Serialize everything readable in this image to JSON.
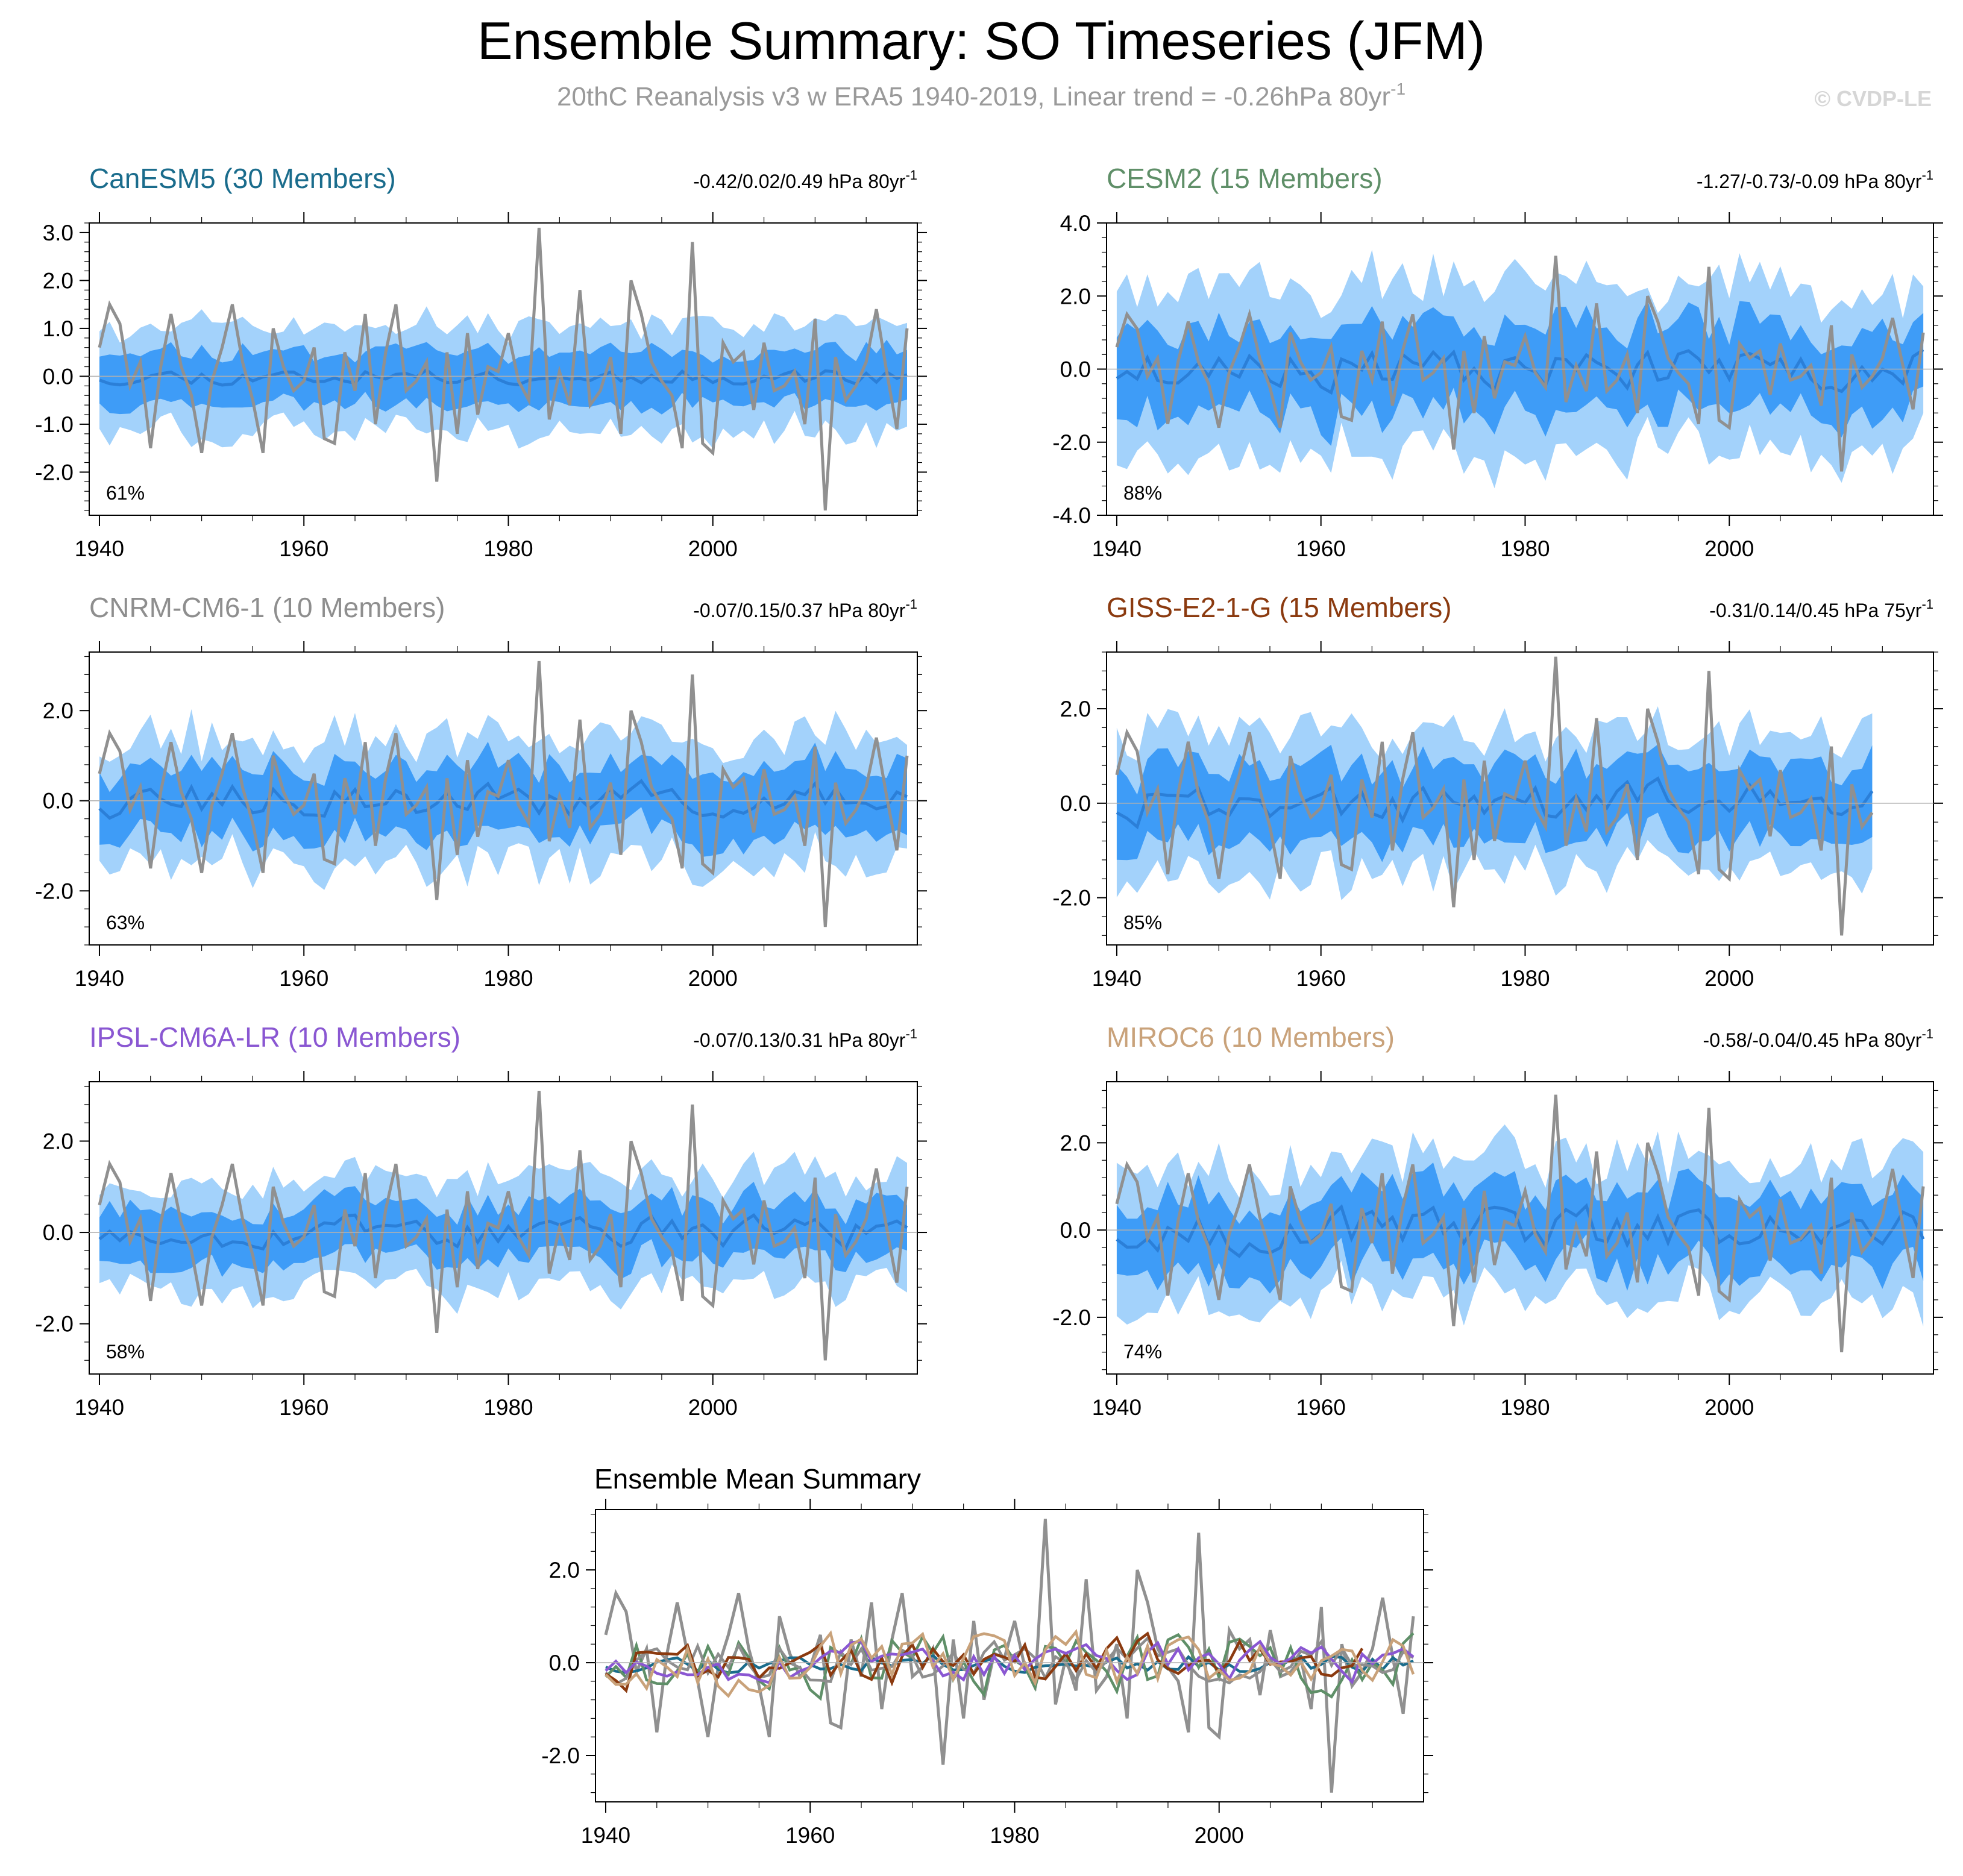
{
  "title": "Ensemble Summary: SO Timeseries (JFM)",
  "subtitle": "20thC Reanalysis v3 w ERA5 1940-2019, Linear trend = -0.26hPa 80yr",
  "subtitle_sup": "-1",
  "copyright": "© CVDP-LE",
  "chart_data": {
    "type": "line",
    "observed": {
      "name": "20thC Reanalysis v3 w ERA5",
      "color": "#909090",
      "x": [
        1940,
        1941,
        1942,
        1943,
        1944,
        1945,
        1946,
        1947,
        1948,
        1949,
        1950,
        1951,
        1952,
        1953,
        1954,
        1955,
        1956,
        1957,
        1958,
        1959,
        1960,
        1961,
        1962,
        1963,
        1964,
        1965,
        1966,
        1967,
        1968,
        1969,
        1970,
        1971,
        1972,
        1973,
        1974,
        1975,
        1976,
        1977,
        1978,
        1979,
        1980,
        1981,
        1982,
        1983,
        1984,
        1985,
        1986,
        1987,
        1988,
        1989,
        1990,
        1991,
        1992,
        1993,
        1994,
        1995,
        1996,
        1997,
        1998,
        1999,
        2000,
        2001,
        2002,
        2003,
        2004,
        2005,
        2006,
        2007,
        2008,
        2009,
        2010,
        2011,
        2012,
        2013,
        2014,
        2015,
        2016,
        2017,
        2018,
        2019
      ],
      "values": [
        0.6,
        1.5,
        1.1,
        -0.2,
        0.3,
        -1.5,
        0.2,
        1.3,
        0.2,
        -0.4,
        -1.6,
        -0.1,
        0.6,
        1.5,
        0.3,
        -0.5,
        -1.6,
        1.0,
        0.2,
        -0.3,
        -0.1,
        0.6,
        -1.3,
        -1.4,
        0.5,
        -0.3,
        1.3,
        -1.0,
        0.5,
        1.5,
        -0.3,
        -0.1,
        0.3,
        -2.2,
        0.5,
        -1.2,
        0.9,
        -0.8,
        0.2,
        0.1,
        0.9,
        -0.1,
        -0.5,
        3.1,
        -0.9,
        0.1,
        -0.6,
        1.8,
        -0.6,
        -0.3,
        0.4,
        -1.2,
        2.0,
        1.3,
        0.3,
        -0.1,
        -0.4,
        -1.5,
        2.8,
        -1.4,
        -1.6,
        0.7,
        0.3,
        0.5,
        -0.7,
        0.7,
        -0.3,
        -0.2,
        0.1,
        -1.0,
        1.2,
        -2.8,
        0.4,
        -0.5,
        -0.2,
        0.3,
        1.4,
        0.1,
        -1.1,
        1.0
      ]
    },
    "panels": [
      {
        "model": "CanESM5",
        "members_label": "CanESM5 (30 Members)",
        "color": "#1a6c8c",
        "trend_label": "-0.42/0.02/0.49 hPa 80yr",
        "trend_sup": "-1",
        "pct_label": "61%",
        "x_start": 1940,
        "x_end": 2019,
        "ylim": [
          -2.9,
          3.2
        ],
        "yticks": [
          -2.0,
          -1.0,
          0.0,
          1.0,
          2.0,
          3.0
        ],
        "ytick_labels": [
          "-2.0",
          "-1.0",
          "0.0",
          "1.0",
          "2.0",
          "3.0"
        ],
        "xticks": [
          1940,
          1960,
          1980,
          2000
        ],
        "band_stats": {
          "mean_amp": 0.15,
          "inner_spread": 0.55,
          "outer_spread": 1.1,
          "seed": 11
        }
      },
      {
        "model": "CESM2",
        "members_label": "CESM2 (15 Members)",
        "color": "#5f8f68",
        "trend_label": "-1.27/-0.73/-0.09 hPa 80yr",
        "trend_sup": "-1",
        "pct_label": "88%",
        "x_start": 1940,
        "x_end": 2019,
        "ylim": [
          -4.0,
          4.0
        ],
        "yticks": [
          -4.0,
          -2.0,
          0.0,
          2.0,
          4.0
        ],
        "ytick_labels": [
          "-4.0",
          "-2.0",
          "0.0",
          "2.0",
          "4.0"
        ],
        "xticks": [
          1940,
          1960,
          1980,
          2000
        ],
        "band_stats": {
          "mean_amp": 0.5,
          "inner_spread": 1.2,
          "outer_spread": 2.3,
          "seed": 23
        }
      },
      {
        "model": "CNRM-CM6-1",
        "members_label": "CNRM-CM6-1 (10 Members)",
        "color": "#8e8e8e",
        "trend_label": "-0.07/0.15/0.37 hPa 80yr",
        "trend_sup": "-1",
        "pct_label": "63%",
        "x_start": 1940,
        "x_end": 2019,
        "ylim": [
          -3.2,
          3.3
        ],
        "yticks": [
          -2.0,
          0.0,
          2.0
        ],
        "ytick_labels": [
          "-2.0",
          "0.0",
          "2.0"
        ],
        "xticks": [
          1940,
          1960,
          1980,
          2000
        ],
        "band_stats": {
          "mean_amp": 0.35,
          "inner_spread": 0.75,
          "outer_spread": 1.4,
          "seed": 37
        }
      },
      {
        "model": "GISS-E2-1-G",
        "members_label": "GISS-E2-1-G (15 Members)",
        "color": "#8b3a0f",
        "trend_label": "-0.31/0.14/0.45 hPa 75yr",
        "trend_sup": "-1",
        "pct_label": "85%",
        "x_start": 1940,
        "x_end": 2014,
        "ylim": [
          -3.0,
          3.2
        ],
        "yticks": [
          -2.0,
          0.0,
          2.0
        ],
        "ytick_labels": [
          "-2.0",
          "0.0",
          "2.0"
        ],
        "xticks": [
          1940,
          1960,
          1980,
          2000
        ],
        "band_stats": {
          "mean_amp": 0.4,
          "inner_spread": 0.8,
          "outer_spread": 1.5,
          "seed": 41
        }
      },
      {
        "model": "IPSL-CM6A-LR",
        "members_label": "IPSL-CM6A-LR (10 Members)",
        "color": "#8a57d2",
        "trend_label": "-0.07/0.13/0.31 hPa 80yr",
        "trend_sup": "-1",
        "pct_label": "58%",
        "x_start": 1940,
        "x_end": 2019,
        "ylim": [
          -3.1,
          3.3
        ],
        "yticks": [
          -2.0,
          0.0,
          2.0
        ],
        "ytick_labels": [
          "-2.0",
          "0.0",
          "2.0"
        ],
        "xticks": [
          1940,
          1960,
          1980,
          2000
        ],
        "band_stats": {
          "mean_amp": 0.3,
          "inner_spread": 0.6,
          "outer_spread": 1.2,
          "seed": 53
        }
      },
      {
        "model": "MIROC6",
        "members_label": "MIROC6 (10 Members)",
        "color": "#c9a27a",
        "trend_label": "-0.58/-0.04/0.45 hPa 80yr",
        "trend_sup": "-1",
        "pct_label": "74%",
        "x_start": 1940,
        "x_end": 2019,
        "ylim": [
          -3.3,
          3.4
        ],
        "yticks": [
          -2.0,
          0.0,
          2.0
        ],
        "ytick_labels": [
          "-2.0",
          "0.0",
          "2.0"
        ],
        "xticks": [
          1940,
          1960,
          1980,
          2000
        ],
        "band_stats": {
          "mean_amp": 0.45,
          "inner_spread": 0.85,
          "outer_spread": 1.6,
          "seed": 67
        }
      }
    ],
    "mean_summary": {
      "title": "Ensemble Mean Summary",
      "x_start": 1940,
      "x_end": 2019,
      "ylim": [
        -3.0,
        3.3
      ],
      "yticks": [
        -2.0,
        0.0,
        2.0
      ],
      "ytick_labels": [
        "-2.0",
        "0.0",
        "2.0"
      ],
      "xticks": [
        1940,
        1960,
        1980,
        2000
      ]
    },
    "xtick_labels": [
      "1940",
      "1960",
      "1980",
      "2000"
    ],
    "colors": {
      "outer_band": "#a3d2fb",
      "inner_band": "#3e9cf7",
      "ens_mean_line": "#2b7fd8",
      "axis": "#000000"
    }
  }
}
